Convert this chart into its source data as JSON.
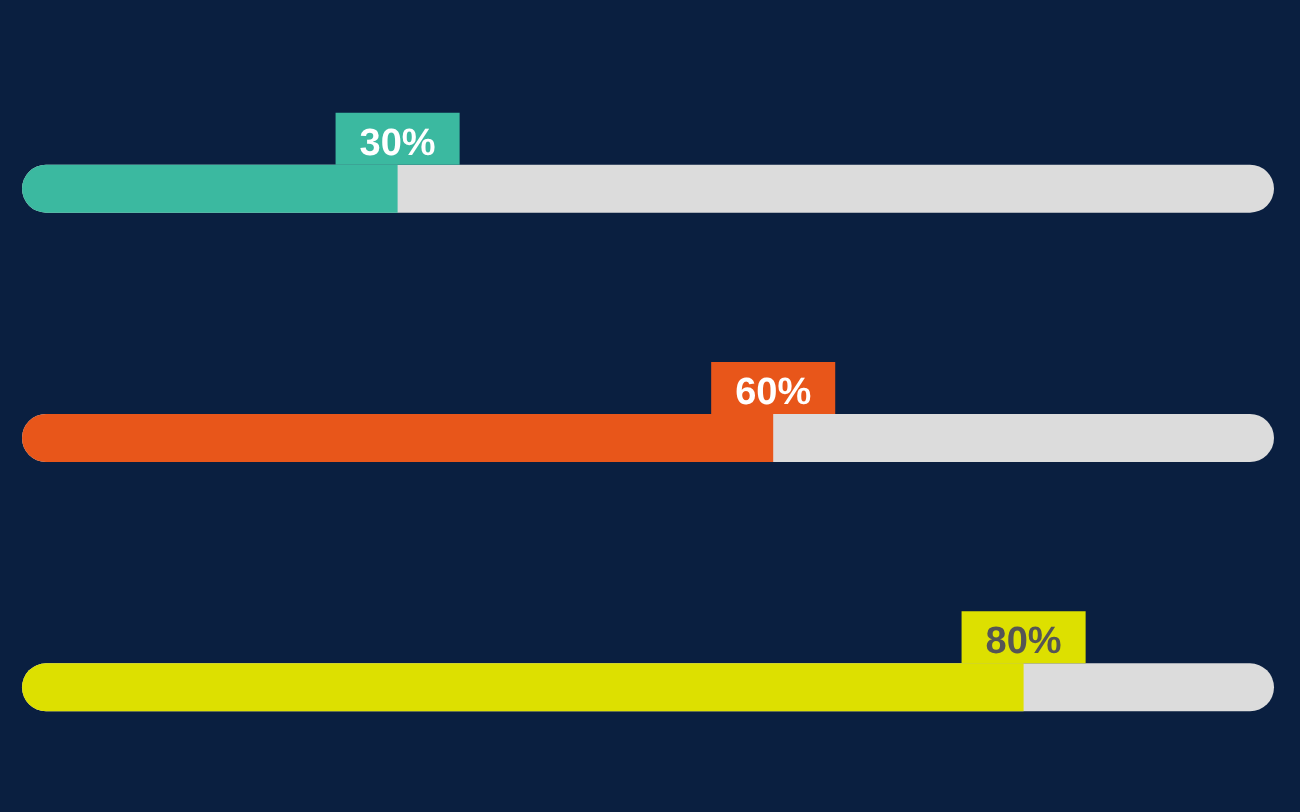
{
  "chart_data": {
    "type": "bar",
    "orientation": "horizontal",
    "categories": [
      null,
      null,
      null
    ],
    "values": [
      30,
      60,
      80
    ],
    "colors": [
      "#3bb9a0",
      "#e8561a",
      "#dde000"
    ],
    "value_labels": [
      "30%",
      "60%",
      "80%"
    ],
    "xlim": [
      0,
      100
    ]
  }
}
